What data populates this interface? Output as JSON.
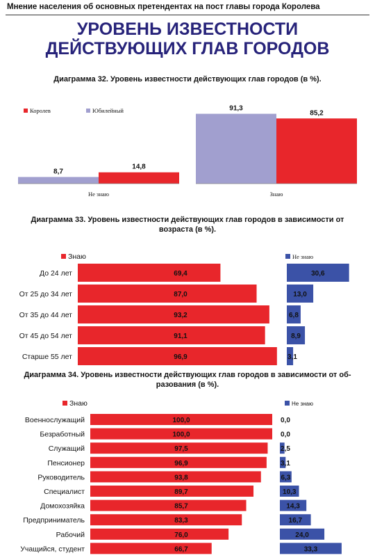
{
  "page": {
    "header": "Мнение населения об основных претендентах на пост главы города Королева",
    "title_line1": "УРОВЕНЬ ИЗВЕСТНОСТИ",
    "title_line2": "ДЕЙСТВУЮЩИХ ГЛАВ ГОРОДОВ"
  },
  "colors": {
    "red": "#e8262b",
    "lavender": "#a19fcf",
    "blue": "#3b52a7",
    "title": "#27237a"
  },
  "chart_data": [
    {
      "type": "bar",
      "title": "Диаграмма 32. Уровень известности действующих глав городов (в %).",
      "categories": [
        "Не знаю",
        "Знаю"
      ],
      "series": [
        {
          "name": "Юбилейный",
          "values": [
            8.7,
            91.3
          ],
          "labels": [
            "8,7",
            "91,3"
          ]
        },
        {
          "name": "Королев",
          "values": [
            14.8,
            85.2
          ],
          "labels": [
            "14,8",
            "85,2"
          ]
        }
      ],
      "ylim": [
        0,
        100
      ]
    },
    {
      "type": "bar",
      "title_line1": "Диаграмма 33. Уровень известности действующих глав городов в зависимости от",
      "title_line2": "возраста (в %).",
      "categories": [
        "До 24 лет",
        "От 25 до 34 лет",
        "От 35 до 44 лет",
        "От 45 до 54 лет",
        "Старше 55 лет"
      ],
      "series": [
        {
          "name": "Знаю",
          "values": [
            69.4,
            87.0,
            93.2,
            91.1,
            96.9
          ],
          "labels": [
            "69,4",
            "87,0",
            "93,2",
            "91,1",
            "96,9"
          ]
        },
        {
          "name": "Не знаю",
          "values": [
            30.6,
            13.0,
            6.8,
            8.9,
            3.1
          ],
          "labels": [
            "30,6",
            "13,0",
            "6,8",
            "8,9",
            "3,1"
          ]
        }
      ],
      "xlim": [
        0,
        100
      ]
    },
    {
      "type": "bar",
      "title_line1": "Диаграмма 34. Уровень известности действующих глав городов в зависимости от об-",
      "title_line2": "разования (в %).",
      "categories": [
        "Военнослужащий",
        "Безработный",
        "Служащий",
        "Пенсионер",
        "Руководитель",
        "Специалист",
        "Домохозяйка",
        "Предприниматель",
        "Рабочий",
        "Учащийся, студент"
      ],
      "series": [
        {
          "name": "Знаю",
          "values": [
            100.0,
            100.0,
            97.5,
            96.9,
            93.8,
            89.7,
            85.7,
            83.3,
            76.0,
            66.7
          ],
          "labels": [
            "100,0",
            "100,0",
            "97,5",
            "96,9",
            "93,8",
            "89,7",
            "85,7",
            "83,3",
            "76,0",
            "66,7"
          ]
        },
        {
          "name": "Не знаю",
          "values": [
            0.0,
            0.0,
            2.5,
            3.1,
            6.3,
            10.3,
            14.3,
            16.7,
            24.0,
            33.3
          ],
          "labels": [
            "0,0",
            "0,0",
            "2,5",
            "3,1",
            "6,3",
            "10,3",
            "14,3",
            "16,7",
            "24,0",
            "33,3"
          ]
        }
      ],
      "xlim": [
        0,
        100
      ]
    }
  ]
}
